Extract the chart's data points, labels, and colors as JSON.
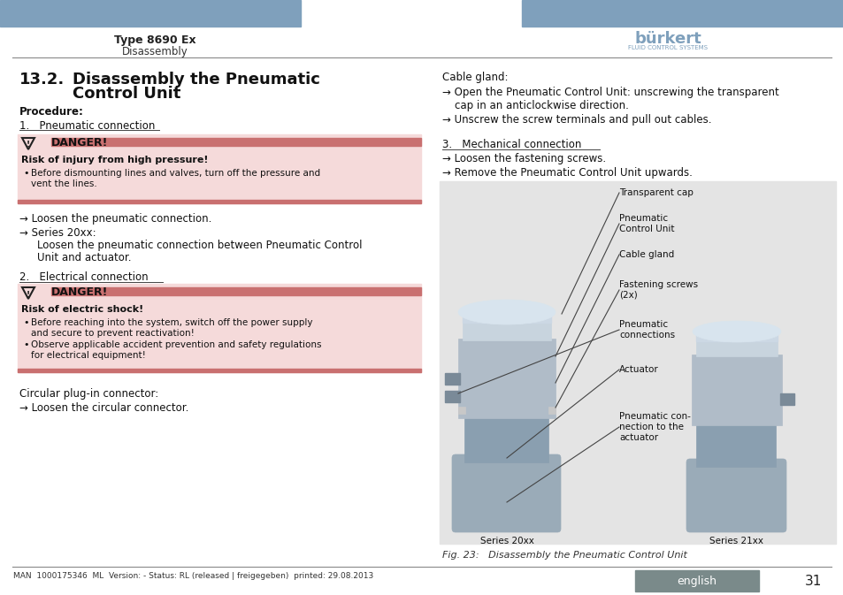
{
  "bg_color": "#ffffff",
  "header_bar_color": "#7fa0bc",
  "header_text_left": "Type 8690 Ex",
  "header_text_sub": "Disassembly",
  "page_number": "31",
  "language_tag": "english",
  "language_tag_color": "#7a8a8a",
  "danger1_bg": "#f5dada",
  "danger1_bar": "#c97070",
  "danger2_bg": "#f5dada",
  "danger2_bar": "#c97070",
  "footer_text": "MAN  1000175346  ML  Version: - Status: RL (released | freigegeben)  printed: 29.08.2013",
  "text_color": "#111111"
}
